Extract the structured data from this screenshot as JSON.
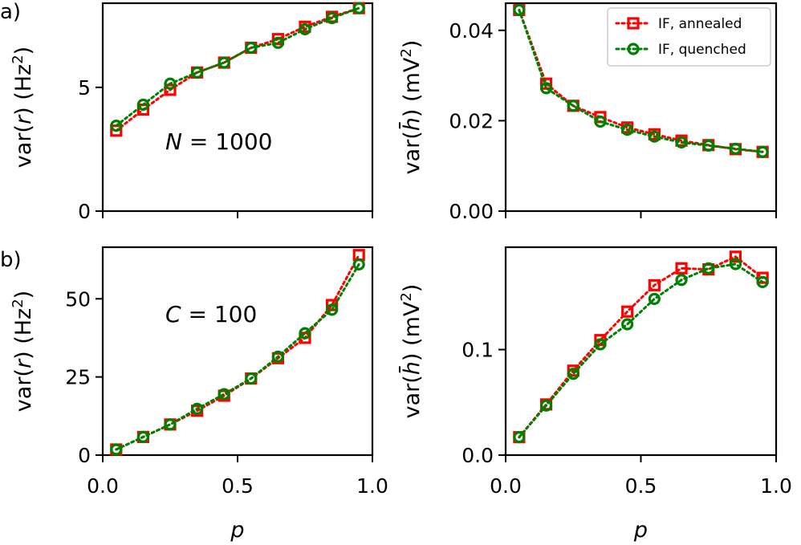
{
  "chart_data": [
    {
      "id": "top_left",
      "type": "line",
      "panel_label": "a)",
      "annotation": {
        "symbol": "N",
        "rest": " = 1000"
      },
      "ylabel": {
        "pre": "var(",
        "var": "r",
        "mid": ") (Hz",
        "sup": "2",
        "post": ")"
      },
      "xlabel": "",
      "xlim": [
        0.0,
        1.0
      ],
      "ylim": [
        0,
        8.4
      ],
      "yticks": [
        0,
        5
      ],
      "ytick_labels": [
        "0",
        "5"
      ],
      "xticks": [
        0.0,
        0.5,
        1.0
      ],
      "xtick_labels": [
        "",
        "",
        ""
      ],
      "x": [
        0.05,
        0.15,
        0.25,
        0.35,
        0.45,
        0.55,
        0.65,
        0.75,
        0.85,
        0.95
      ],
      "series": [
        {
          "name": "IF, annealed",
          "values": [
            3.25,
            4.1,
            4.9,
            5.6,
            6.0,
            6.6,
            6.95,
            7.45,
            7.85,
            8.2
          ]
        },
        {
          "name": "IF, quenched",
          "values": [
            3.45,
            4.3,
            5.15,
            5.6,
            6.0,
            6.6,
            6.8,
            7.35,
            7.8,
            8.2
          ]
        }
      ]
    },
    {
      "id": "top_right",
      "type": "line",
      "panel_label": "",
      "annotation": null,
      "ylabel": {
        "pre": "var(",
        "var": "h̄",
        "mid": ") (mV",
        "sup": "2",
        "post": ")"
      },
      "xlabel": "",
      "xlim": [
        0.0,
        1.0
      ],
      "ylim": [
        0.0,
        0.046
      ],
      "yticks": [
        0.0,
        0.02,
        0.04
      ],
      "ytick_labels": [
        "0.00",
        "0.02",
        "0.04"
      ],
      "xticks": [
        0.0,
        0.5,
        1.0
      ],
      "xtick_labels": [
        "",
        "",
        ""
      ],
      "x": [
        0.05,
        0.15,
        0.25,
        0.35,
        0.45,
        0.55,
        0.65,
        0.75,
        0.85,
        0.95
      ],
      "series": [
        {
          "name": "IF, annealed",
          "values": [
            0.0445,
            0.0282,
            0.0233,
            0.0208,
            0.0185,
            0.017,
            0.0156,
            0.0146,
            0.0137,
            0.0131
          ]
        },
        {
          "name": "IF, quenched",
          "values": [
            0.0445,
            0.0272,
            0.0233,
            0.0198,
            0.018,
            0.0165,
            0.0152,
            0.0145,
            0.0138,
            0.0131
          ]
        }
      ]
    },
    {
      "id": "bottom_left",
      "type": "line",
      "panel_label": "b)",
      "annotation": {
        "symbol": "C",
        "rest": " = 100"
      },
      "ylabel": {
        "pre": "var(",
        "var": "r",
        "mid": ") (Hz",
        "sup": "2",
        "post": ")"
      },
      "xlabel": "p",
      "xlim": [
        0.0,
        1.0
      ],
      "ylim": [
        0,
        66.5
      ],
      "yticks": [
        0,
        25,
        50
      ],
      "ytick_labels": [
        "0",
        "25",
        "50"
      ],
      "xticks": [
        0.0,
        0.5,
        1.0
      ],
      "xtick_labels": [
        "0.0",
        "0.5",
        "1.0"
      ],
      "x": [
        0.05,
        0.15,
        0.25,
        0.35,
        0.45,
        0.55,
        0.65,
        0.75,
        0.85,
        0.95
      ],
      "series": [
        {
          "name": "IF, annealed",
          "values": [
            1.8,
            5.8,
            9.8,
            14.2,
            19.0,
            24.5,
            31.0,
            37.5,
            48.0,
            64.0
          ]
        },
        {
          "name": "IF, quenched",
          "values": [
            1.8,
            5.8,
            9.8,
            14.8,
            19.5,
            24.5,
            31.5,
            39.0,
            46.5,
            61.0
          ]
        }
      ]
    },
    {
      "id": "bottom_right",
      "type": "line",
      "panel_label": "",
      "annotation": null,
      "ylabel": {
        "pre": "var(",
        "var": "h̄",
        "mid": ") (mV",
        "sup": "2",
        "post": ")"
      },
      "xlabel": "p",
      "xlim": [
        0.0,
        1.0
      ],
      "ylim": [
        0.0,
        0.197
      ],
      "yticks": [
        0.0,
        0.1
      ],
      "ytick_labels": [
        "0.0",
        "0.1"
      ],
      "xticks": [
        0.0,
        0.5,
        1.0
      ],
      "xtick_labels": [
        "0.0",
        "0.5",
        "1.0"
      ],
      "x": [
        0.05,
        0.15,
        0.25,
        0.35,
        0.45,
        0.55,
        0.65,
        0.75,
        0.85,
        0.95
      ],
      "series": [
        {
          "name": "IF, annealed",
          "values": [
            0.017,
            0.048,
            0.08,
            0.109,
            0.136,
            0.161,
            0.177,
            0.176,
            0.188,
            0.168
          ]
        },
        {
          "name": "IF, quenched",
          "values": [
            0.017,
            0.047,
            0.077,
            0.105,
            0.124,
            0.148,
            0.166,
            0.177,
            0.181,
            0.164
          ]
        }
      ]
    }
  ],
  "legend": {
    "placement": "top-right of top-right panel",
    "entries": [
      {
        "label": "IF, annealed",
        "color": "#ff0000",
        "marker": "square",
        "linestyle": "dotted"
      },
      {
        "label": "IF, quenched",
        "color": "#008000",
        "marker": "circle",
        "linestyle": "dotted"
      }
    ]
  },
  "colors": {
    "annealed": "#ff0000",
    "quenched": "#008000",
    "axes": "#000000"
  }
}
